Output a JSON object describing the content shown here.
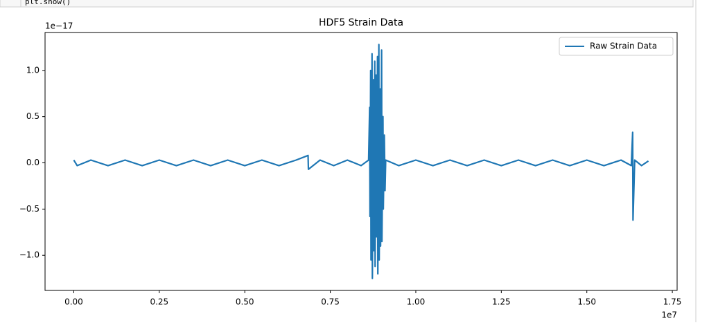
{
  "notebook": {
    "code": "plt.show()"
  },
  "chart_data": {
    "type": "line",
    "title": "HDF5 Strain Data",
    "y_offset_label": "1e−17",
    "x_offset_label": "1e7",
    "legend": "upper right",
    "x": [
      0.0,
      0.01,
      0.05,
      0.1,
      0.15,
      0.2,
      0.25,
      0.3,
      0.35,
      0.4,
      0.45,
      0.5,
      0.55,
      0.6,
      0.65,
      0.685,
      0.686,
      0.72,
      0.76,
      0.8,
      0.84,
      0.862,
      0.865,
      0.866,
      0.868,
      0.869,
      0.872,
      0.873,
      0.876,
      0.877,
      0.88,
      0.881,
      0.884,
      0.885,
      0.888,
      0.889,
      0.892,
      0.893,
      0.896,
      0.897,
      0.9,
      0.901,
      0.904,
      0.905,
      0.908,
      0.91,
      0.912,
      0.95,
      1.0,
      1.05,
      1.1,
      1.15,
      1.2,
      1.25,
      1.3,
      1.35,
      1.4,
      1.45,
      1.5,
      1.55,
      1.6,
      1.63,
      1.634,
      1.635,
      1.64,
      1.66,
      1.68
    ],
    "series": [
      {
        "name": "Raw Strain Data",
        "color": "#1f77b4",
        "values": [
          0.03,
          -0.03,
          0.03,
          -0.03,
          0.03,
          -0.03,
          0.03,
          -0.03,
          0.03,
          -0.03,
          0.03,
          -0.03,
          0.03,
          -0.03,
          0.03,
          0.08,
          -0.07,
          0.03,
          -0.03,
          0.03,
          -0.03,
          0.03,
          0.6,
          -0.58,
          1.0,
          -1.05,
          1.18,
          -1.25,
          0.9,
          -0.95,
          1.1,
          -1.12,
          0.95,
          -0.8,
          1.15,
          -1.2,
          1.28,
          -1.05,
          0.8,
          -0.9,
          1.22,
          -0.85,
          0.5,
          -0.5,
          0.3,
          -0.3,
          0.03,
          -0.03,
          0.03,
          -0.03,
          0.03,
          -0.03,
          0.03,
          -0.03,
          0.03,
          -0.03,
          0.03,
          -0.03,
          0.03,
          -0.03,
          0.03,
          -0.03,
          0.33,
          -0.62,
          0.03,
          -0.03,
          0.02
        ]
      }
    ],
    "xlim": [
      -0.084,
      1.764
    ],
    "ylim": [
      -1.38,
      1.41
    ],
    "xticks": [
      {
        "value": 0,
        "label": "0.00"
      },
      {
        "value": 0.25,
        "label": "0.25"
      },
      {
        "value": 0.5,
        "label": "0.50"
      },
      {
        "value": 0.75,
        "label": "0.75"
      },
      {
        "value": 1,
        "label": "1.00"
      },
      {
        "value": 1.25,
        "label": "1.25"
      },
      {
        "value": 1.5,
        "label": "1.50"
      },
      {
        "value": 1.75,
        "label": "1.75"
      }
    ],
    "yticks": [
      {
        "value": -1,
        "label": "−1.0"
      },
      {
        "value": -0.5,
        "label": "−0.5"
      },
      {
        "value": 0,
        "label": "0.0"
      },
      {
        "value": 0.5,
        "label": "0.5"
      },
      {
        "value": 1,
        "label": "1.0"
      }
    ]
  }
}
